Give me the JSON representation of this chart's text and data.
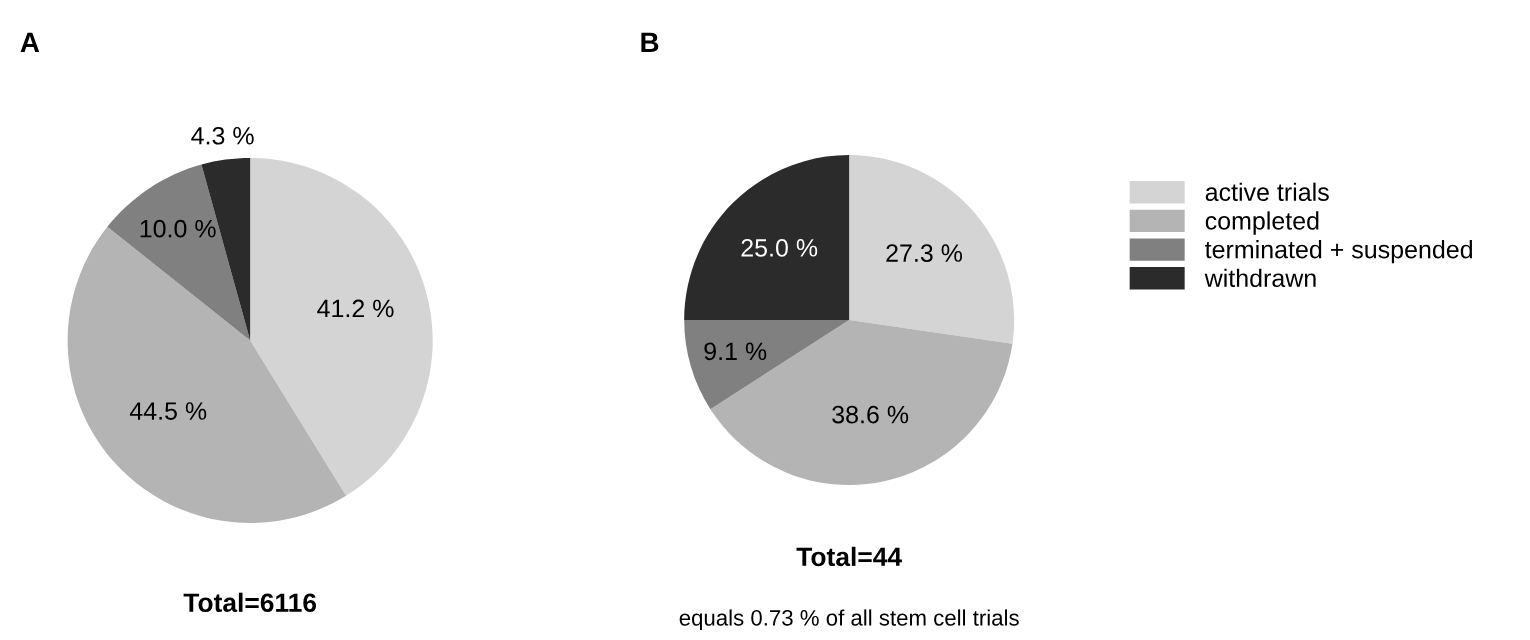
{
  "chart_data": [
    {
      "type": "pie",
      "title": "A",
      "categories": [
        null,
        null,
        null,
        null
      ],
      "values": [
        41.2,
        44.5,
        10.0,
        4.3
      ],
      "value_labels": [
        "41.2 %",
        "44.5 %",
        "10.0 %",
        "4.3 %"
      ],
      "colors": [
        "#d4d4d4",
        "#b4b4b4",
        "#808080",
        "#2b2b2b"
      ],
      "annotations": [
        "Total=6116"
      ]
    },
    {
      "type": "pie",
      "title": "B",
      "categories": [
        "active trials",
        "completed",
        "terminated + suspended",
        "withdrawn"
      ],
      "values": [
        27.3,
        38.6,
        9.1,
        25.0
      ],
      "value_labels": [
        "27.3 %",
        "38.6 %",
        "9.1 %",
        "25.0 %"
      ],
      "colors": [
        "#d4d4d4",
        "#b4b4b4",
        "#808080",
        "#2b2b2b"
      ],
      "annotations": [
        "Total=44",
        "equals 0.73 % of all stem cell trials"
      ],
      "legend": "right"
    }
  ]
}
